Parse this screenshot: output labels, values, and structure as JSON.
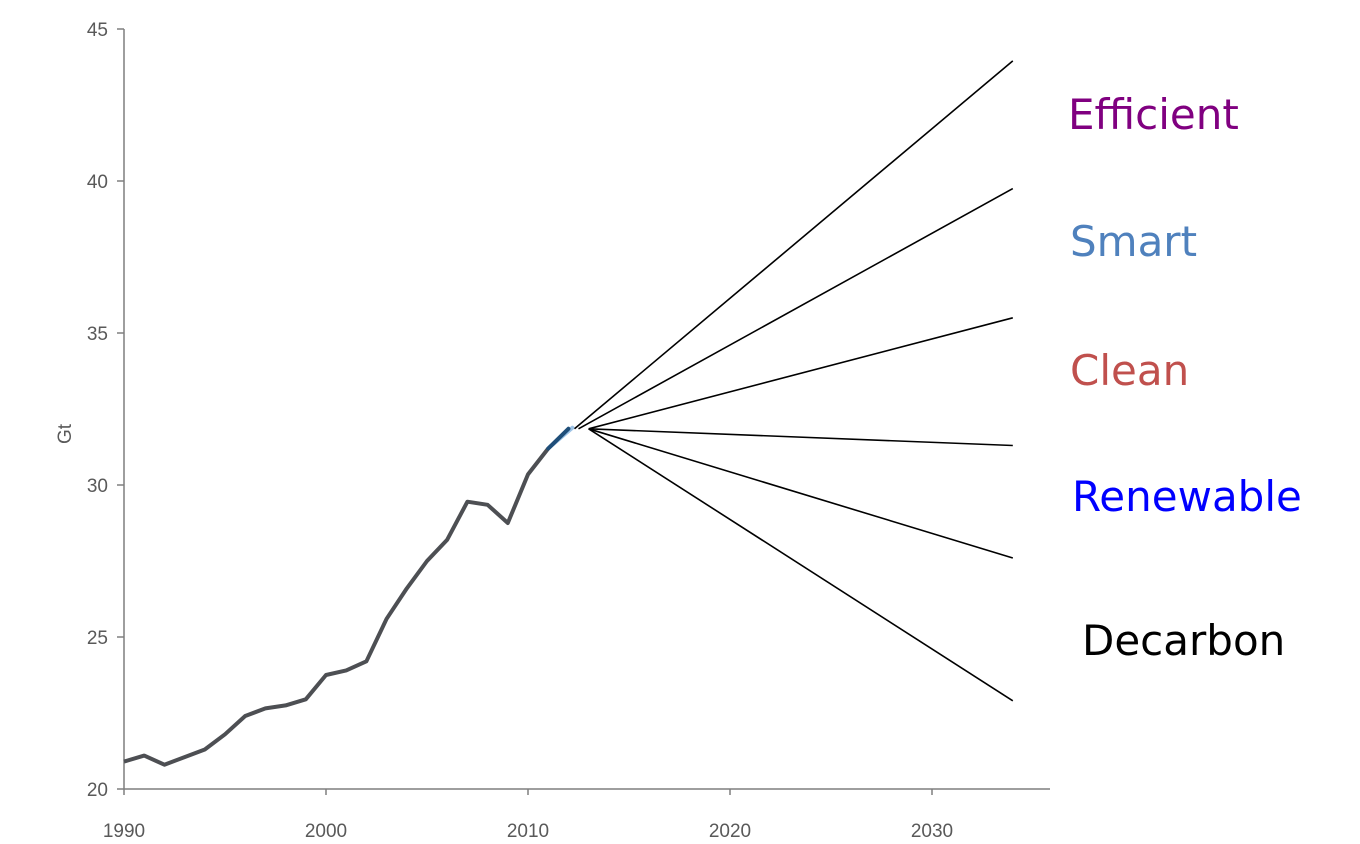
{
  "chart_data": {
    "type": "line",
    "title": "",
    "xlabel": "",
    "ylabel": "Gt",
    "xlim": [
      1990,
      2035
    ],
    "ylim": [
      20,
      45
    ],
    "xticks": [
      1990,
      2000,
      2010,
      2020,
      2030
    ],
    "yticks": [
      20,
      25,
      30,
      35,
      40,
      45
    ],
    "grid": false,
    "historical": {
      "color": "#4d4f53",
      "x": [
        1990,
        1991,
        1992,
        1993,
        1994,
        1995,
        1996,
        1997,
        1998,
        1999,
        2000,
        2001,
        2002,
        2003,
        2004,
        2005,
        2006,
        2007,
        2008,
        2009,
        2010,
        2011
      ],
      "y": [
        20.9,
        21.1,
        20.8,
        21.05,
        21.3,
        21.8,
        22.4,
        22.65,
        22.75,
        22.95,
        23.75,
        23.9,
        24.2,
        25.6,
        26.6,
        27.5,
        28.2,
        29.45,
        29.35,
        28.75,
        30.35,
        31.2
      ]
    },
    "bridge": {
      "color": "#1f4e79",
      "x": [
        2011,
        2012
      ],
      "y": [
        31.2,
        31.85
      ]
    },
    "scenario_origin": {
      "x": 2013,
      "y": 31.85
    },
    "scenarios": [
      {
        "label": "Efficient",
        "color": "#800080",
        "x": [
          2012.3,
          2034
        ],
        "y": [
          31.85,
          43.95
        ]
      },
      {
        "label": "Smart",
        "color": "#4f81bd",
        "x": [
          2012.5,
          2034
        ],
        "y": [
          31.85,
          39.75
        ]
      },
      {
        "label": "Clean",
        "color": "#c0504d",
        "x": [
          2013,
          2034
        ],
        "y": [
          31.85,
          35.5
        ]
      },
      {
        "label": "Renewable",
        "color": "#0000ff",
        "x": [
          2013,
          2034
        ],
        "y": [
          31.85,
          31.3
        ]
      },
      {
        "label": "Decarbon",
        "color": "#000000",
        "x": [
          2013,
          2034
        ],
        "y": [
          31.85,
          27.6
        ]
      },
      {
        "label": "",
        "color": "#000000",
        "x": [
          2013,
          2034
        ],
        "y": [
          31.85,
          22.9
        ]
      }
    ]
  }
}
